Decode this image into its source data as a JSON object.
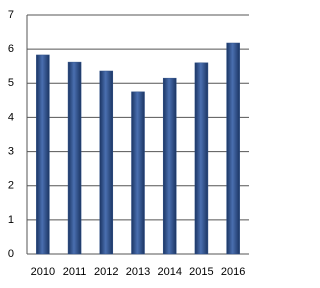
{
  "chart_data": {
    "type": "bar",
    "categories": [
      "2010",
      "2011",
      "2012",
      "2013",
      "2014",
      "2015",
      "2016"
    ],
    "values": [
      5.83,
      5.62,
      5.36,
      4.75,
      5.15,
      5.6,
      6.18
    ],
    "color": "#2e4f86",
    "ylim": [
      0,
      7
    ],
    "yticks": [
      0,
      1,
      2,
      3,
      4,
      5,
      6,
      7
    ],
    "grid": true
  }
}
